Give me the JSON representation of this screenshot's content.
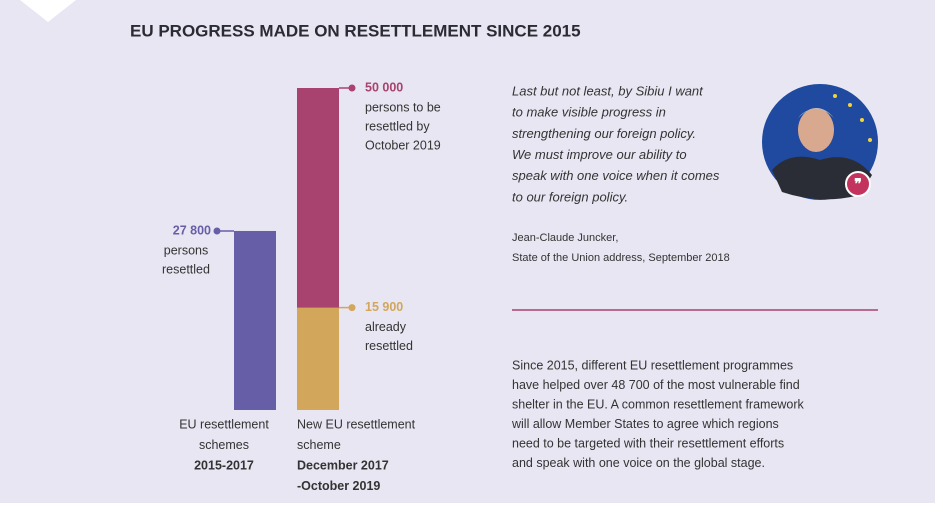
{
  "chart_data": {
    "type": "bar",
    "title": "EU PROGRESS MADE ON RESETTLEMENT SINCE 2015",
    "bars": [
      {
        "category": [
          "EU resettlement",
          "schemes"
        ],
        "period": [
          "2015-2017"
        ],
        "value": 27800,
        "value_label": "27 800",
        "note": [
          "persons",
          "resettled"
        ],
        "color": "#675ea8"
      },
      {
        "category": [
          "New EU resettlement",
          "scheme"
        ],
        "period": [
          "December 2017",
          "-October 2019"
        ],
        "target": 50000,
        "target_label": "50 000",
        "target_note": [
          "persons to be",
          "resettled by",
          "October 2019"
        ],
        "target_color": "#a8426e",
        "value": 15900,
        "value_label": "15 900",
        "note": [
          "already",
          "resettled"
        ],
        "color": "#d2a75c"
      }
    ]
  },
  "quote": {
    "lines": [
      "Last but not least, by Sibiu I want",
      "to make visible progress in",
      "strengthening our foreign policy.",
      "We must improve our ability to",
      "speak with one voice when it comes",
      "to our foreign policy."
    ],
    "author": "Jean-Claude Juncker,",
    "source": "State of the Union address, September 2018"
  },
  "summary": [
    "Since 2015, different EU resettlement programmes",
    "have helped over 48 700 of the most vulnerable find",
    "shelter in the EU. A common resettlement framework",
    "will allow Member States to agree which regions",
    "need to be targeted with their resettlement efforts",
    "and speak with one voice on the global stage."
  ]
}
